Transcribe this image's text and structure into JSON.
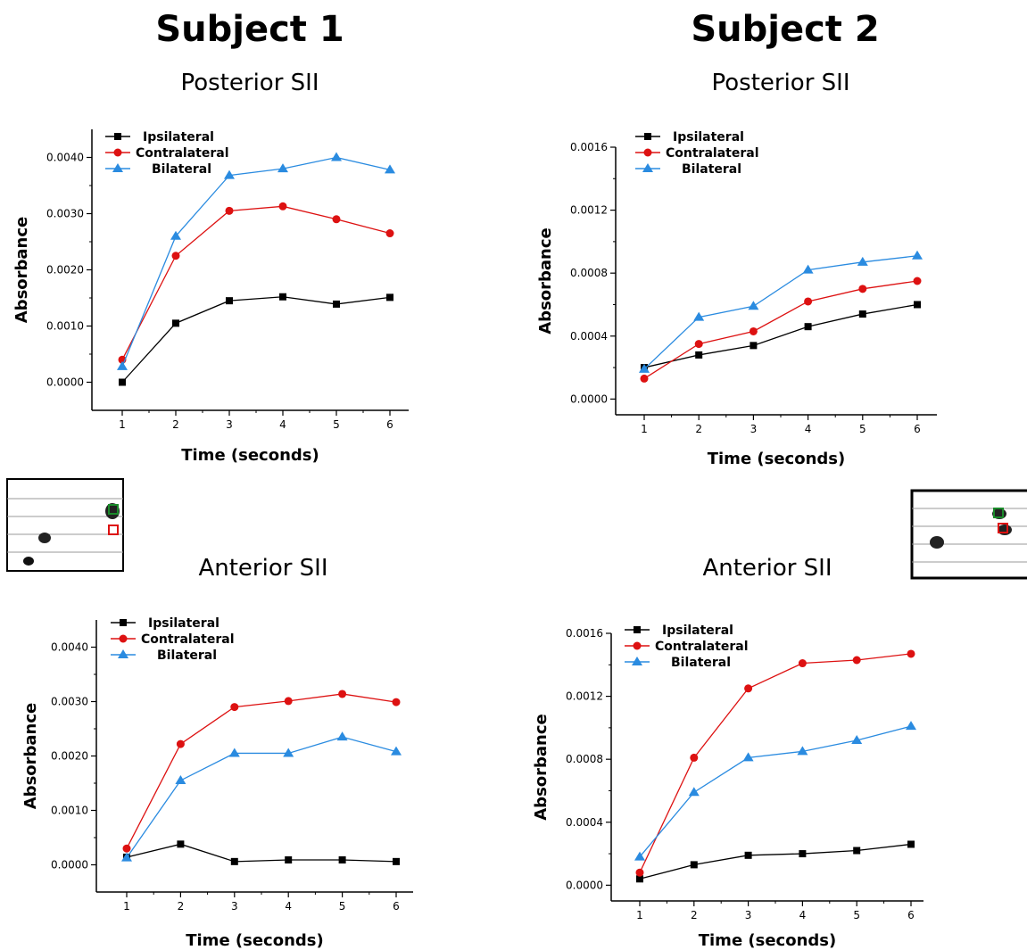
{
  "headings": {
    "subject1": "Subject 1",
    "subject2": "Subject 2"
  },
  "colors": {
    "ipsilateral": "#000000",
    "contralateral": "#dd1111",
    "bilateral": "#2a8be0"
  },
  "thumbnails": [
    {
      "name": "subject1-brain-slice-thumbnail"
    },
    {
      "name": "subject2-brain-slice-thumbnail"
    }
  ],
  "chart_data": [
    {
      "type": "line",
      "title": "Posterior SII",
      "xlabel": "Time (seconds)",
      "ylabel": "Absorbance",
      "categories": [
        1,
        2,
        3,
        4,
        5,
        6
      ],
      "x_ticks": [
        "1",
        "2",
        "3",
        "4",
        "5",
        "6"
      ],
      "y_ticks": [
        "0.0000",
        "0.0010",
        "0.0020",
        "0.0030",
        "0.0040"
      ],
      "ylim": [
        -0.0005,
        0.0045
      ],
      "legend_position": "top-left",
      "series": [
        {
          "name": "Ipsilateral",
          "marker": "square",
          "values": [
            0.0,
            0.00105,
            0.00145,
            0.00152,
            0.00139,
            0.00151
          ]
        },
        {
          "name": "Contralateral",
          "marker": "circle",
          "values": [
            0.0004,
            0.00225,
            0.00305,
            0.00313,
            0.0029,
            0.00265
          ]
        },
        {
          "name": "Bilateral",
          "marker": "triangle",
          "values": [
            0.00028,
            0.0026,
            0.00368,
            0.0038,
            0.004,
            0.00378
          ]
        }
      ]
    },
    {
      "type": "line",
      "title": "Posterior SII",
      "xlabel": "Time (seconds)",
      "ylabel": "Absorbance",
      "categories": [
        1,
        2,
        3,
        4,
        5,
        6
      ],
      "x_ticks": [
        "1",
        "2",
        "3",
        "4",
        "5",
        "6"
      ],
      "y_ticks": [
        "0.0000",
        "0.0004",
        "0.0008",
        "0.0012",
        "0.0016"
      ],
      "ylim": [
        -0.0001,
        0.0016
      ],
      "legend_position": "top-left",
      "series": [
        {
          "name": "Ipsilateral",
          "marker": "square",
          "values": [
            0.0002,
            0.00028,
            0.00034,
            0.00046,
            0.00054,
            0.0006
          ]
        },
        {
          "name": "Contralateral",
          "marker": "circle",
          "values": [
            0.00013,
            0.00035,
            0.00043,
            0.00062,
            0.0007,
            0.00075
          ]
        },
        {
          "name": "Bilateral",
          "marker": "triangle",
          "values": [
            0.00019,
            0.00052,
            0.00059,
            0.00082,
            0.00087,
            0.00091
          ]
        }
      ]
    },
    {
      "type": "line",
      "title": "Anterior SII",
      "xlabel": "Time (seconds)",
      "ylabel": "Absorbance",
      "categories": [
        1,
        2,
        3,
        4,
        5,
        6
      ],
      "x_ticks": [
        "1",
        "2",
        "3",
        "4",
        "5",
        "6"
      ],
      "y_ticks": [
        "0.0000",
        "0.0010",
        "0.0020",
        "0.0030",
        "0.0040"
      ],
      "ylim": [
        -0.0005,
        0.0045
      ],
      "legend_position": "top-left",
      "series": [
        {
          "name": "Ipsilateral",
          "marker": "square",
          "values": [
            0.00014,
            0.00038,
            6e-05,
            9e-05,
            9e-05,
            6e-05
          ]
        },
        {
          "name": "Contralateral",
          "marker": "circle",
          "values": [
            0.0003,
            0.00222,
            0.0029,
            0.00301,
            0.00314,
            0.00299
          ]
        },
        {
          "name": "Bilateral",
          "marker": "triangle",
          "values": [
            0.00013,
            0.00155,
            0.00205,
            0.00205,
            0.00235,
            0.00208
          ]
        }
      ]
    },
    {
      "type": "line",
      "title": "Anterior SII",
      "xlabel": "Time (seconds)",
      "ylabel": "Absorbance",
      "categories": [
        1,
        2,
        3,
        4,
        5,
        6
      ],
      "x_ticks": [
        "1",
        "2",
        "3",
        "4",
        "5",
        "6"
      ],
      "y_ticks": [
        "0.0000",
        "0.0004",
        "0.0008",
        "0.0012",
        "0.0016"
      ],
      "ylim": [
        -0.0001,
        0.0016
      ],
      "legend_position": "top-left",
      "series": [
        {
          "name": "Ipsilateral",
          "marker": "square",
          "values": [
            4e-05,
            0.00013,
            0.00019,
            0.0002,
            0.00022,
            0.00026
          ]
        },
        {
          "name": "Contralateral",
          "marker": "circle",
          "values": [
            8e-05,
            0.00081,
            0.00125,
            0.00141,
            0.00143,
            0.00147
          ]
        },
        {
          "name": "Bilateral",
          "marker": "triangle",
          "values": [
            0.00018,
            0.00059,
            0.00081,
            0.00085,
            0.00092,
            0.00101
          ]
        }
      ]
    }
  ]
}
